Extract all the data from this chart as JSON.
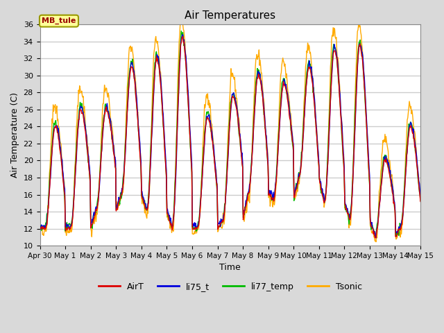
{
  "title": "Air Temperatures",
  "xlabel": "Time",
  "ylabel": "Air Temperature (C)",
  "ylim": [
    10,
    36
  ],
  "yticks": [
    10,
    12,
    14,
    16,
    18,
    20,
    22,
    24,
    26,
    28,
    30,
    32,
    34,
    36
  ],
  "background_color": "#d9d9d9",
  "plot_bg_color": "#ffffff",
  "grid_color": "#cccccc",
  "legend_label": "MB_tule",
  "legend_text_color": "#990000",
  "legend_box_color": "#ffff99",
  "legend_border_color": "#999900",
  "line_colors": {
    "AirT": "#dd0000",
    "li75_t": "#0000dd",
    "li77_temp": "#00bb00",
    "Tsonic": "#ffaa00"
  },
  "num_days": 15,
  "tick_labels": [
    "Apr 30",
    "May 1",
    "May 2",
    "May 3",
    "May 4",
    "May 5",
    "May 6",
    "May 7",
    "May 8",
    "May 9",
    "May 10",
    "May 11",
    "May 12",
    "May 13",
    "May 14",
    "May 15"
  ]
}
